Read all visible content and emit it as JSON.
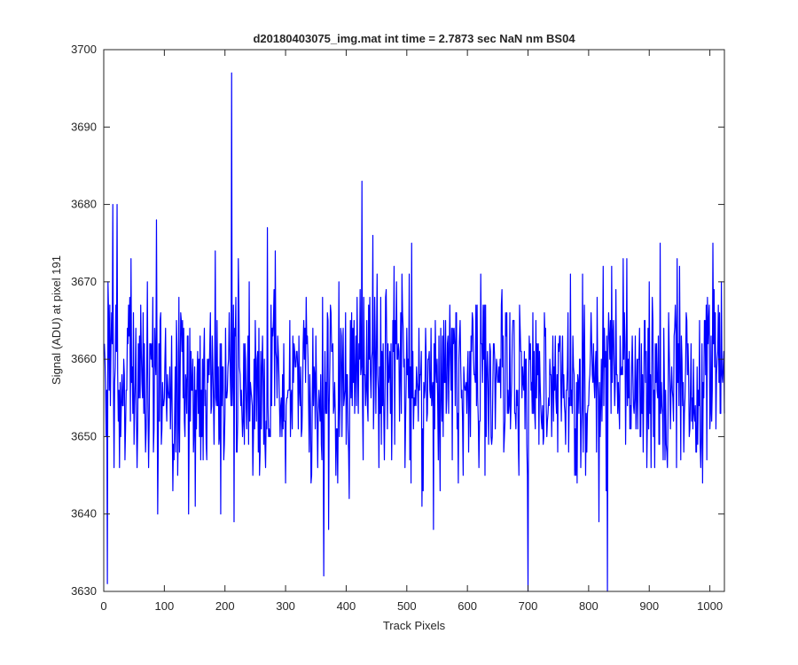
{
  "chart_data": {
    "type": "line",
    "title": "d20180403075_img.mat int time = 2.7873 sec  NaN nm BS04",
    "xlabel": "Track Pixels",
    "ylabel": "Signal (ADU) at pixel 191",
    "xlim": [
      0,
      1024
    ],
    "ylim": [
      3630,
      3700
    ],
    "xticks": [
      0,
      100,
      200,
      300,
      400,
      500,
      600,
      700,
      800,
      900,
      1000
    ],
    "yticks": [
      3630,
      3640,
      3650,
      3660,
      3670,
      3680,
      3690,
      3700
    ],
    "grid": false,
    "box": true,
    "series": [
      {
        "color": "#0000ff",
        "x_start": 1,
        "x_step": 1,
        "n": 1024,
        "mean": 3657,
        "noise_sd": 6.5,
        "features": [
          {
            "x": 6,
            "y": 3631
          },
          {
            "x": 22,
            "y": 3680
          },
          {
            "x": 211,
            "y": 3697
          },
          {
            "x": 363,
            "y": 3632
          },
          {
            "x": 426,
            "y": 3683
          },
          {
            "x": 270,
            "y": 3677
          },
          {
            "x": 700,
            "y": 3630
          },
          {
            "x": 831,
            "y": 3630
          },
          {
            "x": 918,
            "y": 3675
          },
          {
            "x": 1005,
            "y": 3675
          },
          {
            "x": 1019,
            "y": 3670
          }
        ]
      }
    ]
  }
}
